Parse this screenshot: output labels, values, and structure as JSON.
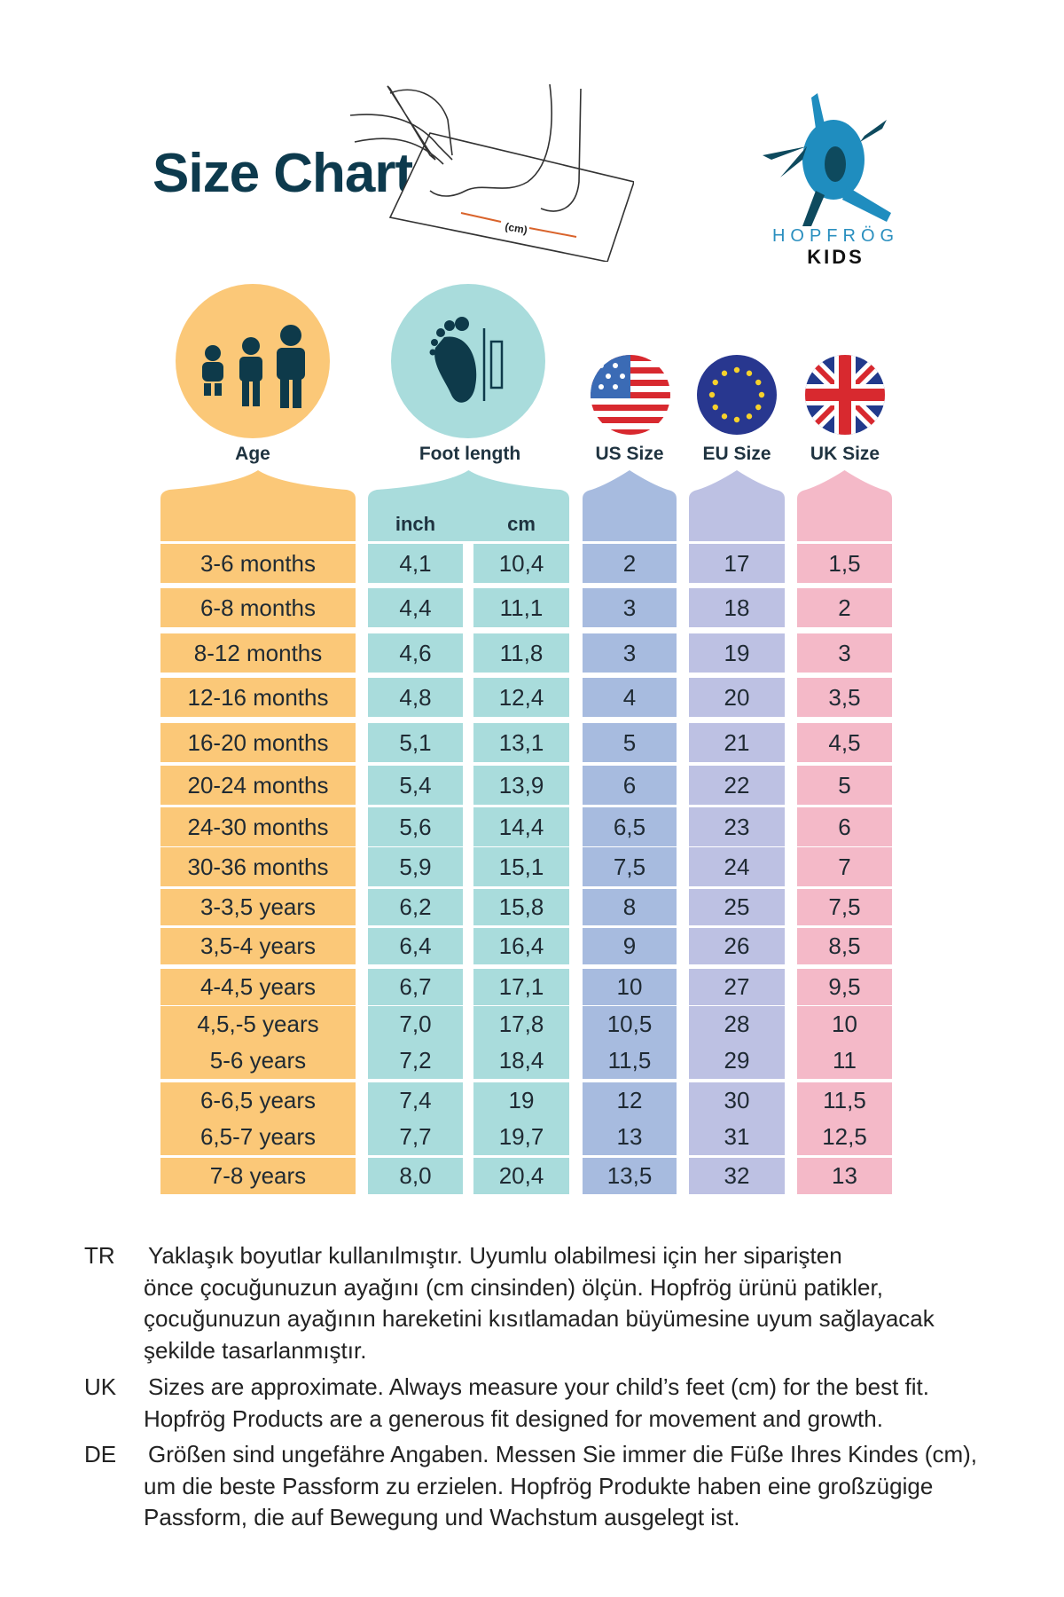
{
  "header": {
    "title": "Size Chart",
    "illustration_label": "(cm)",
    "brand_top": "HOPFRÖG",
    "brand_bottom": "KIDS"
  },
  "colors": {
    "title": "#0d3a4d",
    "age": "#fbc878",
    "foot": "#a9dcdc",
    "us": "#a7bbdf",
    "eu": "#bdc1e3",
    "uk": "#f4b9c8",
    "icon": "#0e3a4a"
  },
  "columns": {
    "age": "Age",
    "foot_length": "Foot length",
    "us": "US Size",
    "eu": "EU Size",
    "uk": "UK Size",
    "inch": "inch",
    "cm": "cm"
  },
  "icons": {
    "age": "children-silhouettes-icon",
    "foot": "foot-with-ruler-icon",
    "us": "us-flag-icon",
    "eu": "eu-flag-icon",
    "uk": "uk-flag-icon",
    "logo": "frog-logo-icon"
  },
  "rows": [
    {
      "age": "3-6 months",
      "inch": "4,1",
      "cm": "10,4",
      "us": "2",
      "eu": "17",
      "uk": "1,5"
    },
    {
      "age": "6-8 months",
      "inch": "4,4",
      "cm": "11,1",
      "us": "3",
      "eu": "18",
      "uk": "2"
    },
    {
      "age": "8-12 months",
      "inch": "4,6",
      "cm": "11,8",
      "us": "3",
      "eu": "19",
      "uk": "3"
    },
    {
      "age": "12-16 months",
      "inch": "4,8",
      "cm": "12,4",
      "us": "4",
      "eu": "20",
      "uk": "3,5"
    },
    {
      "age": "16-20 months",
      "inch": "5,1",
      "cm": "13,1",
      "us": "5",
      "eu": "21",
      "uk": "4,5"
    },
    {
      "age": "20-24 months",
      "inch": "5,4",
      "cm": "13,9",
      "us": "6",
      "eu": "22",
      "uk": "5"
    },
    {
      "age": "24-30 months",
      "inch": "5,6",
      "cm": "14,4",
      "us": "6,5",
      "eu": "23",
      "uk": "6"
    },
    {
      "age": "30-36 months",
      "inch": "5,9",
      "cm": "15,1",
      "us": "7,5",
      "eu": "24",
      "uk": "7"
    },
    {
      "age": "3-3,5 years",
      "inch": "6,2",
      "cm": "15,8",
      "us": "8",
      "eu": "25",
      "uk": "7,5"
    },
    {
      "age": "3,5-4 years",
      "inch": "6,4",
      "cm": "16,4",
      "us": "9",
      "eu": "26",
      "uk": "8,5"
    },
    {
      "age": "4-4,5 years",
      "inch": "6,7",
      "cm": "17,1",
      "us": "10",
      "eu": "27",
      "uk": "9,5"
    },
    {
      "age": "4,5,-5 years",
      "inch": "7,0",
      "cm": "17,8",
      "us": "10,5",
      "eu": "28",
      "uk": "10"
    },
    {
      "age": "5-6 years",
      "inch": "7,2",
      "cm": "18,4",
      "us": "11,5",
      "eu": "29",
      "uk": "11"
    },
    {
      "age": "6-6,5 years",
      "inch": "7,4",
      "cm": "19",
      "us": "12",
      "eu": "30",
      "uk": "11,5"
    },
    {
      "age": "6,5-7 years",
      "inch": "7,7",
      "cm": "19,7",
      "us": "13",
      "eu": "31",
      "uk": "12,5"
    },
    {
      "age": "7-8 years",
      "inch": "8,0",
      "cm": "20,4",
      "us": "13,5",
      "eu": "32",
      "uk": "13"
    }
  ],
  "notes": [
    {
      "lang": "TR",
      "lines": [
        "Yaklaşık boyutlar kullanılmıştır. Uyumlu olabilmesi için her siparişten",
        "önce çocuğunuzun ayağını (cm cinsinden) ölçün. Hopfrög ürünü patikler,",
        "çocuğunuzun ayağının hareketini kısıtlamadan büyümesine uyum sağlayacak",
        "şekilde tasarlanmıştır."
      ]
    },
    {
      "lang": "UK",
      "lines": [
        "Sizes are approximate. Always measure your child’s feet (cm) for the best fit.",
        "Hopfrög Products are a generous fit designed for movement and growth."
      ]
    },
    {
      "lang": "DE",
      "lines": [
        "Größen sind ungefähre Angaben. Messen Sie immer die Füße Ihres Kindes (cm),",
        "um die beste Passform zu erzielen. Hopfrög Produkte haben eine großzügige",
        "Passform, die auf Bewegung und Wachstum ausgelegt ist."
      ]
    }
  ]
}
